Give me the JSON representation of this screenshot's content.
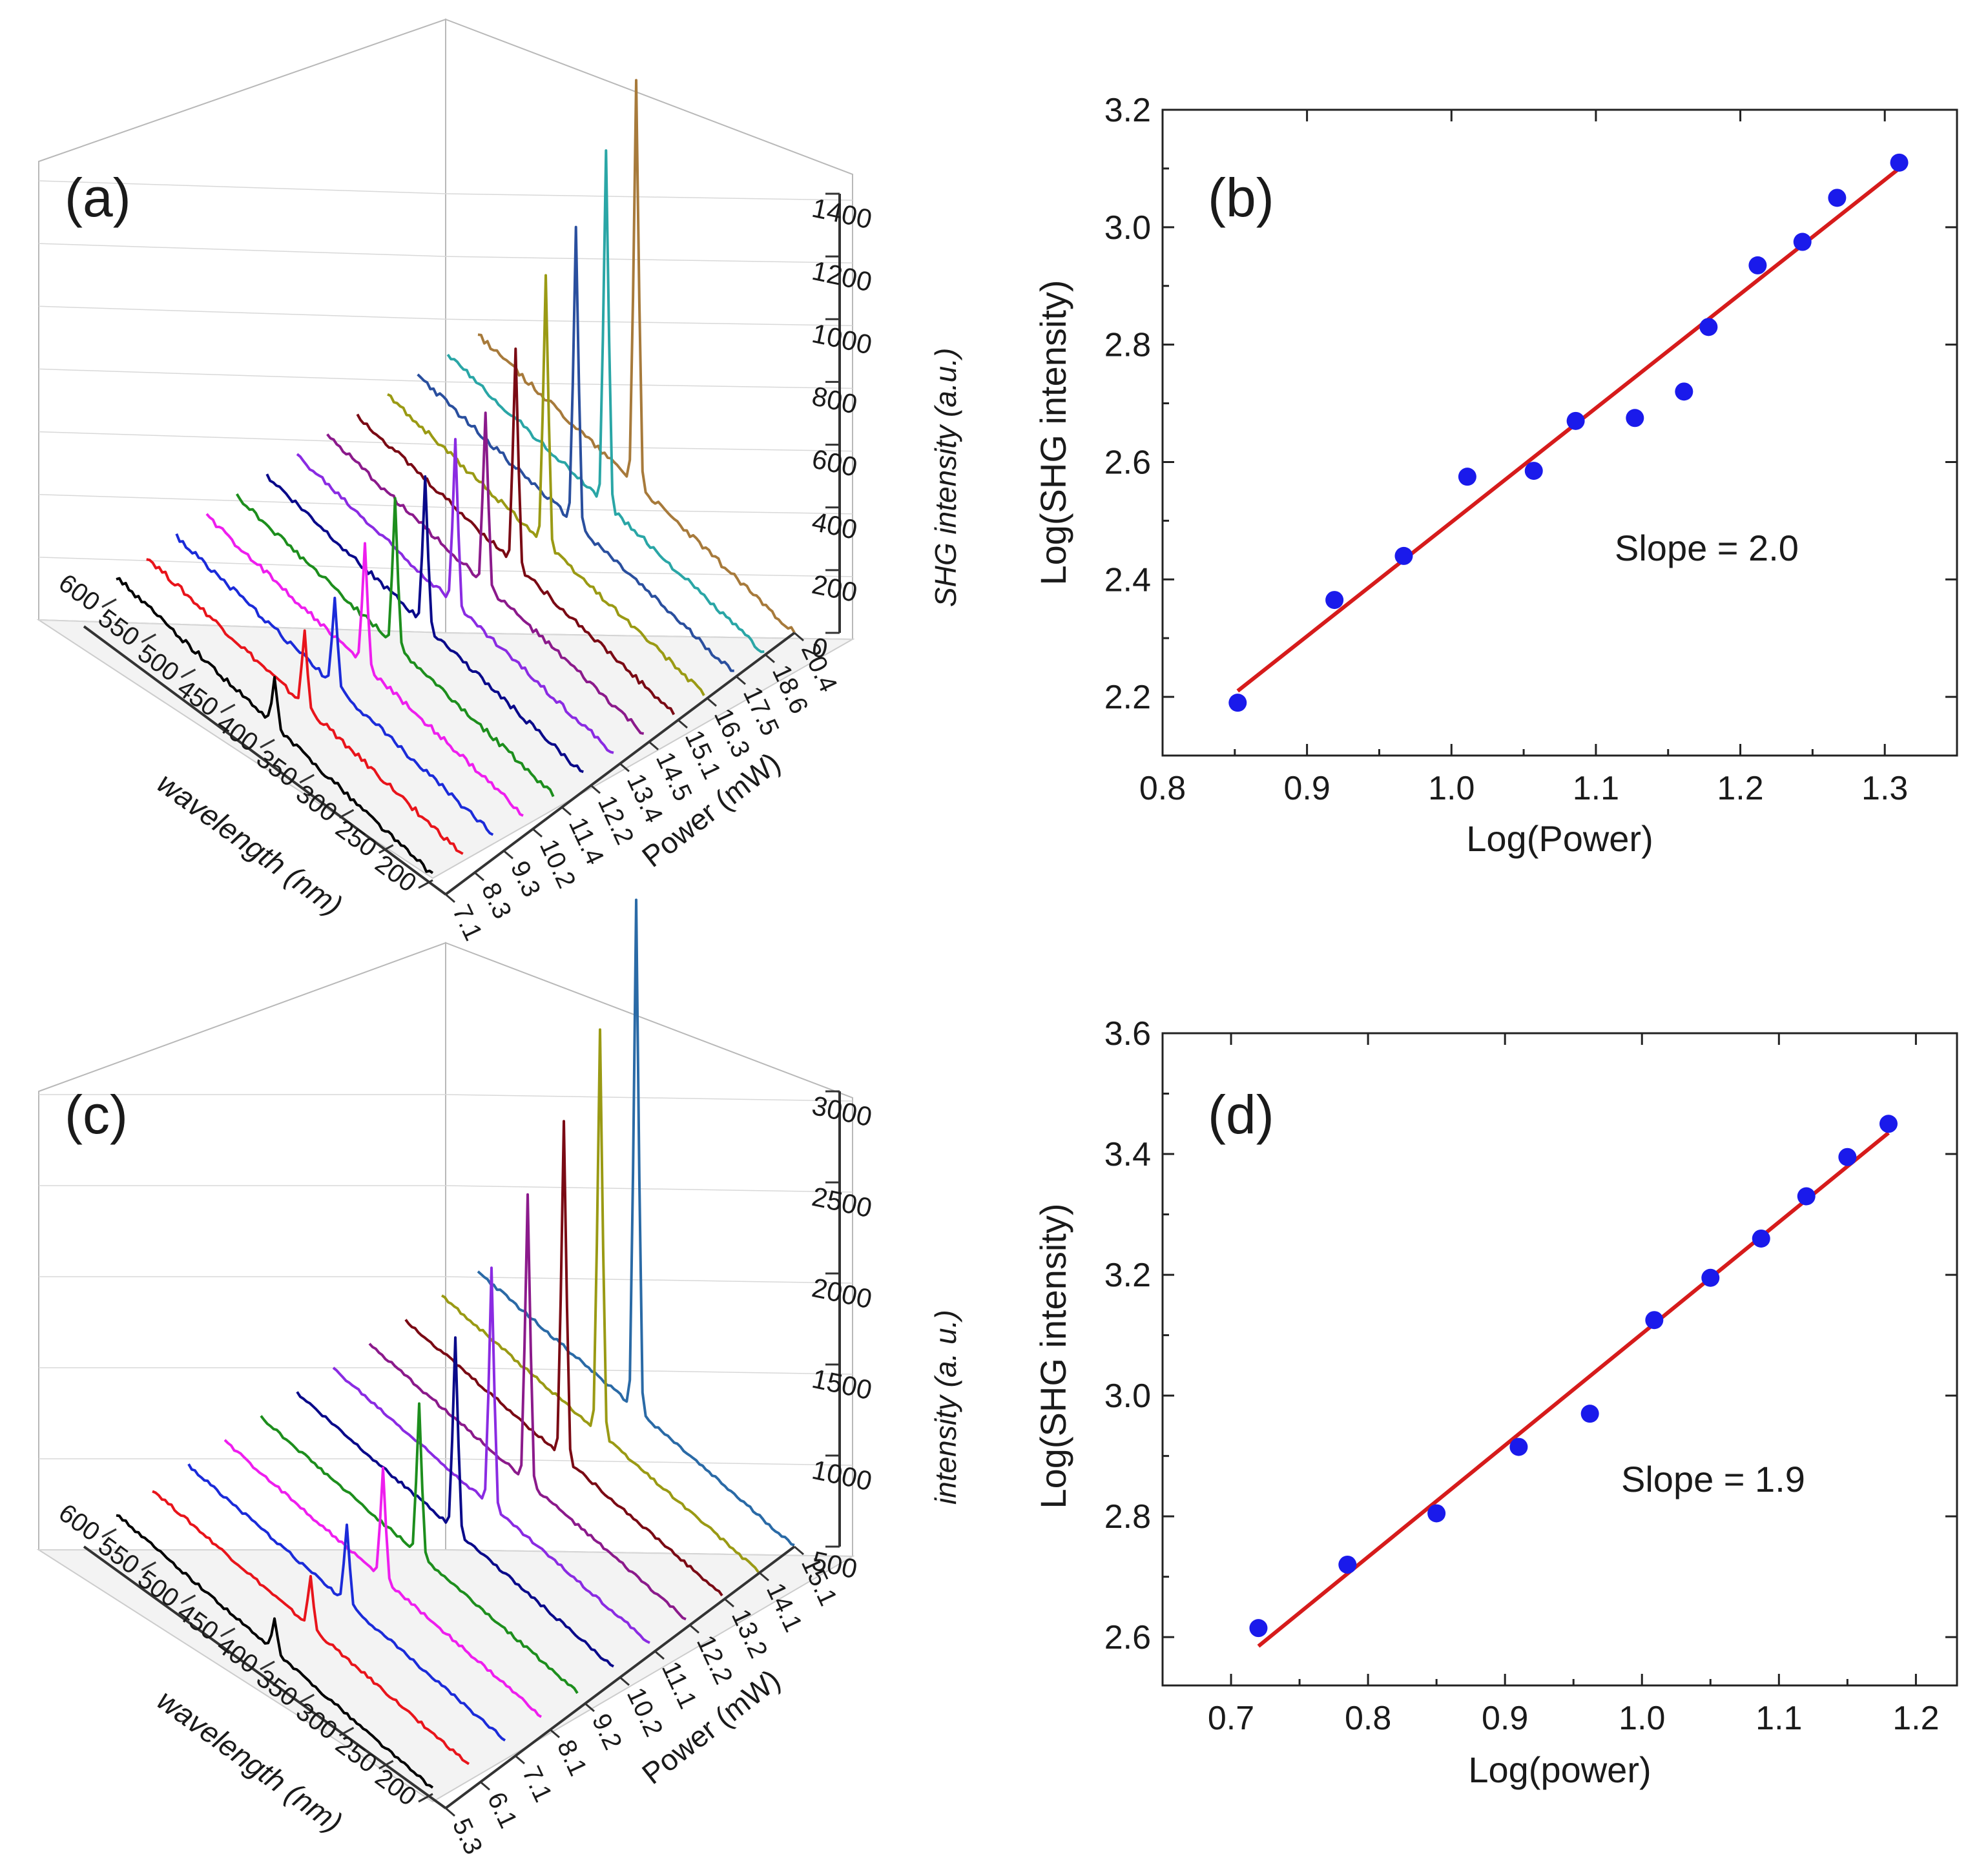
{
  "figure": {
    "panels": [
      "(a)",
      "(b)",
      "(c)",
      "(d)"
    ]
  },
  "chart_data": [
    {
      "panel": "(a)",
      "type": "waterfall-line-3d",
      "title": "",
      "xlabel": "wavelength (nm)",
      "ylabel": "Power (mW)",
      "zlabel": "SHG intensity (a.u.)",
      "x_ticks": [
        "200",
        "250",
        "300",
        "350",
        "400",
        "450",
        "500",
        "550",
        "600"
      ],
      "xlim": [
        200,
        600
      ],
      "power_ticks": [
        "7.1",
        "8.3",
        "9.3",
        "10.2",
        "11.4",
        "12.2",
        "13.4",
        "14.5",
        "15.1",
        "16.3",
        "17.5",
        "18.6",
        "20.4"
      ],
      "z_ticks": [
        "0",
        "200",
        "400",
        "600",
        "800",
        "1000",
        "1200",
        "1400"
      ],
      "zlim": [
        0,
        1400
      ],
      "peak_wavelength": 400,
      "series": [
        {
          "power": "7.1",
          "color": "#000000",
          "peak": 155
        },
        {
          "power": "8.3",
          "color": "#e8141b",
          "peak": 240
        },
        {
          "power": "9.3",
          "color": "#1b2bd9",
          "peak": 280
        },
        {
          "power": "10.2",
          "color": "#ee1eee",
          "peak": 390
        },
        {
          "power": "11.4",
          "color": "#1d8e1d",
          "peak": 470
        },
        {
          "power": "12.2",
          "color": "#0a0a8a",
          "peak": 475
        },
        {
          "power": "13.4",
          "color": "#8a2be2",
          "peak": 530
        },
        {
          "power": "14.5",
          "color": "#8b1a8b",
          "peak": 550
        },
        {
          "power": "15.1",
          "color": "#7a0a14",
          "peak": 690
        },
        {
          "power": "16.3",
          "color": "#9a9a14",
          "peak": 860
        },
        {
          "power": "17.5",
          "color": "#2a4f9e",
          "peak": 950
        },
        {
          "power": "18.6",
          "color": "#2aa6a6",
          "peak": 1130
        },
        {
          "power": "20.4",
          "color": "#a77a3b",
          "peak": 1290
        }
      ]
    },
    {
      "panel": "(b)",
      "type": "scatter",
      "title": "",
      "xlabel": "Log(Power)",
      "ylabel": "Log(SHG intensity)",
      "xlim": [
        0.8,
        1.35
      ],
      "ylim": [
        2.1,
        3.2
      ],
      "x_ticks": [
        "0.8",
        "0.9",
        "1.0",
        "1.1",
        "1.2",
        "1.3"
      ],
      "y_ticks": [
        "2.2",
        "2.4",
        "2.6",
        "2.8",
        "3.0",
        "3.2"
      ],
      "points_x": [
        0.852,
        0.919,
        0.967,
        1.011,
        1.057,
        1.086,
        1.127,
        1.161,
        1.178,
        1.212,
        1.243,
        1.267,
        1.31
      ],
      "points_y": [
        2.19,
        2.365,
        2.44,
        2.575,
        2.585,
        2.67,
        2.675,
        2.72,
        2.83,
        2.935,
        2.975,
        3.05,
        3.11
      ],
      "fit": {
        "x": [
          0.852,
          1.31
        ],
        "y": [
          2.21,
          3.1
        ]
      },
      "annotation": "Slope = 2.0",
      "point_color": "#1a1aeb",
      "fit_color": "#d61b1b"
    },
    {
      "panel": "(c)",
      "type": "waterfall-line-3d",
      "title": "",
      "xlabel": "wavelength (nm)",
      "ylabel": "Power (mW)",
      "zlabel": "intensity (a. u.)",
      "x_ticks": [
        "200",
        "250",
        "300",
        "350",
        "400",
        "450",
        "500",
        "550",
        "600"
      ],
      "xlim": [
        200,
        600
      ],
      "power_ticks": [
        "5.3",
        "6.1",
        "7.1",
        "8.1",
        "9.2",
        "10.2",
        "11.1",
        "12.2",
        "13.2",
        "14.1",
        "15.1"
      ],
      "z_ticks": [
        "500",
        "1000",
        "1500",
        "2000",
        "2500",
        "3000"
      ],
      "zlim": [
        500,
        3000
      ],
      "peak_wavelength": 400,
      "series": [
        {
          "power": "5.3",
          "color": "#000000",
          "peak": 180
        },
        {
          "power": "6.1",
          "color": "#e8141b",
          "peak": 280
        },
        {
          "power": "7.1",
          "color": "#1b2bd9",
          "peak": 430
        },
        {
          "power": "8.1",
          "color": "#ee1eee",
          "peak": 610
        },
        {
          "power": "9.2",
          "color": "#1d8e1d",
          "peak": 830
        },
        {
          "power": "10.2",
          "color": "#0a0a8a",
          "peak": 1060
        },
        {
          "power": "11.1",
          "color": "#8a2be2",
          "peak": 1310
        },
        {
          "power": "12.2",
          "color": "#8b1a8b",
          "peak": 1580
        },
        {
          "power": "13.2",
          "color": "#7a0a14",
          "peak": 1850
        },
        {
          "power": "14.1",
          "color": "#9a9a14",
          "peak": 2220
        },
        {
          "power": "15.1",
          "color": "#2a6aa6",
          "peak": 2800
        }
      ]
    },
    {
      "panel": "(d)",
      "type": "scatter",
      "title": "",
      "xlabel": "Log(power)",
      "ylabel": "Log(SHG intensity)",
      "xlim": [
        0.65,
        1.23
      ],
      "ylim": [
        2.52,
        3.6
      ],
      "x_ticks": [
        "0.7",
        "0.8",
        "0.9",
        "1.0",
        "1.1",
        "1.2"
      ],
      "y_ticks": [
        "2.6",
        "2.8",
        "3.0",
        "3.2",
        "3.4",
        "3.6"
      ],
      "points_x": [
        0.72,
        0.785,
        0.85,
        0.91,
        0.962,
        1.009,
        1.05,
        1.087,
        1.12,
        1.15,
        1.18
      ],
      "points_y": [
        2.615,
        2.72,
        2.805,
        2.915,
        2.97,
        3.125,
        3.195,
        3.26,
        3.33,
        3.395,
        3.45
      ],
      "fit": {
        "x": [
          0.72,
          1.18
        ],
        "y": [
          2.585,
          3.435
        ]
      },
      "annotation": "Slope = 1.9",
      "point_color": "#1a1aeb",
      "fit_color": "#d61b1b"
    }
  ]
}
